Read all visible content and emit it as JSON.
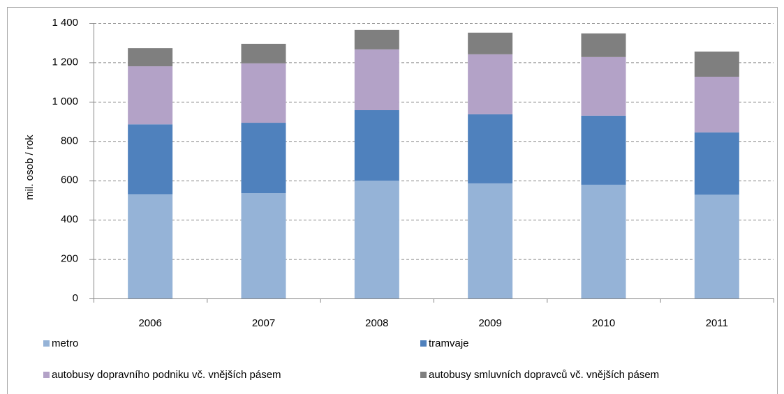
{
  "chart_data": {
    "type": "stacked_bar",
    "y_label": "mil. osob / rok",
    "categories": [
      "2006",
      "2007",
      "2008",
      "2009",
      "2010",
      "2011"
    ],
    "series": [
      {
        "name": "metro",
        "color": "#95b3d7",
        "values": [
          530,
          535,
          599,
          585,
          578,
          528
        ]
      },
      {
        "name": "tramvaje",
        "color": "#4f81bd",
        "values": [
          355,
          358,
          358,
          351,
          351,
          316
        ]
      },
      {
        "name": "autobusy dopravního podniku vč. vnějších pásem",
        "color": "#b3a2c7",
        "values": [
          295,
          302,
          309,
          305,
          298,
          283
        ]
      },
      {
        "name": "autobusy smluvních dopravců vč. vnějších pásem",
        "color": "#7f7f7f",
        "values": [
          92,
          99,
          99,
          110,
          120,
          128
        ]
      }
    ],
    "ylim": [
      0,
      1400
    ],
    "yticks": [
      0,
      200,
      400,
      600,
      800,
      {
        "value": 1000,
        "label": "1 000"
      },
      {
        "value": 1200,
        "label": "1 200"
      },
      {
        "value": 1400,
        "label": "1 400"
      }
    ],
    "grid": true
  }
}
